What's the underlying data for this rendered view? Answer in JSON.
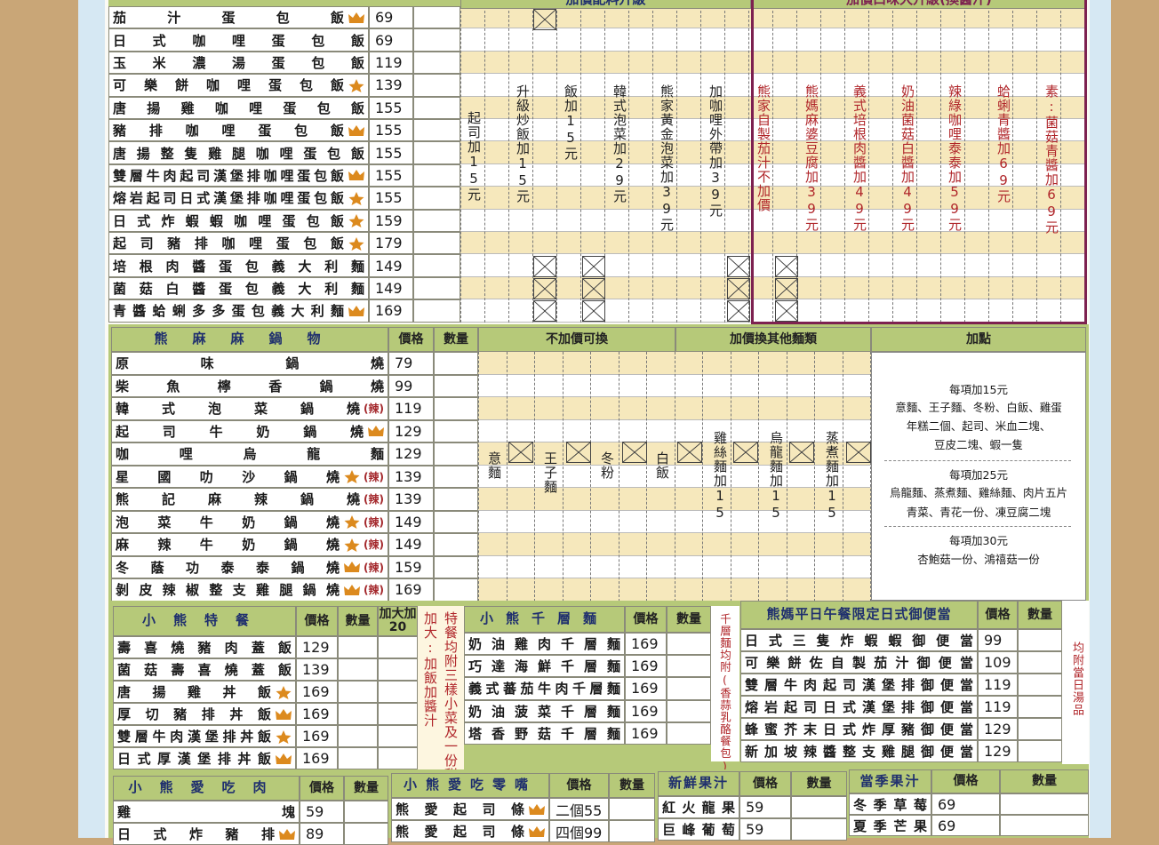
{
  "top_headers": {
    "toppings": "加價配料升級",
    "sauces": "加價口味大升級(換醬汁)"
  },
  "rice": {
    "rows": [
      {
        "name": "茄汁蛋包飯",
        "price": 69,
        "icon": "crown"
      },
      {
        "name": "日式咖哩蛋包飯",
        "price": 69
      },
      {
        "name": "玉米濃湯蛋包飯",
        "price": 119
      },
      {
        "name": "可樂餅咖哩蛋包飯",
        "price": 139,
        "icon": "star"
      },
      {
        "name": "唐揚雞咖哩蛋包飯",
        "price": 155
      },
      {
        "name": "豬排咖哩蛋包飯",
        "price": 155,
        "icon": "crown"
      },
      {
        "name": "唐揚整隻雞腿咖哩蛋包飯",
        "price": 155
      },
      {
        "name": "雙層牛肉起司漢堡排咖哩蛋包飯",
        "price": 155,
        "icon": "crown"
      },
      {
        "name": "熔岩起司日式漢堡排咖哩蛋包飯",
        "price": 155,
        "icon": "star"
      },
      {
        "name": "日式炸蝦蝦咖哩蛋包飯",
        "price": 159,
        "icon": "star"
      },
      {
        "name": "起司豬排咖哩蛋包飯",
        "price": 179,
        "icon": "star"
      },
      {
        "name": "培根肉醬蛋包義大利麵",
        "price": 149
      },
      {
        "name": "菌菇白醬蛋包義大利麵",
        "price": 149
      },
      {
        "name": "青醬蛤蜊多多蛋包義大利麵",
        "price": 169,
        "icon": "crown"
      }
    ],
    "toppings": [
      "起司加15元",
      "升級炒飯加15元",
      "飯加15元",
      "韓式泡菜加29元",
      "熊家黃金泡菜加39元",
      "加咖哩外帶加39元"
    ],
    "sauces": [
      "熊家自製茄汁不加價",
      "熊媽麻婆豆腐加39元",
      "義式培根肉醬加49元",
      "奶油菌菇白醬加49元",
      "辣綠咖哩泰泰加59元",
      "蛤蜊青醬加69元",
      "素:菌菇青醬加69元"
    ]
  },
  "hotpot": {
    "title": "熊麻麻鍋物",
    "headers": [
      "價格",
      "數量",
      "不加價可換",
      "加價換其他麵類",
      "加點"
    ],
    "rows": [
      {
        "name": "原味鍋燒",
        "price": 79
      },
      {
        "name": "柴魚檸香鍋燒",
        "price": 99
      },
      {
        "name": "韓式泡菜鍋燒",
        "price": 119,
        "tag": "(辣)"
      },
      {
        "name": "起司牛奶鍋燒",
        "price": 129,
        "icon": "crown"
      },
      {
        "name": "咖哩烏龍麵",
        "price": 129
      },
      {
        "name": "星國叻沙鍋燒",
        "price": 139,
        "icon": "star",
        "tag": "(辣)"
      },
      {
        "name": "熊記麻辣鍋燒",
        "price": 139,
        "tag": "(辣)"
      },
      {
        "name": "泡菜牛奶鍋燒",
        "price": 149,
        "icon": "star",
        "tag": "(辣)"
      },
      {
        "name": "麻辣牛奶鍋燒",
        "price": 149,
        "icon": "star",
        "tag": "(辣)"
      },
      {
        "name": "冬蔭功泰泰鍋燒",
        "price": 159,
        "icon": "crown",
        "tag": "(辣)"
      },
      {
        "name": "剝皮辣椒整支雞腿鍋燒",
        "price": 169,
        "icon": "crown",
        "tag": "(辣)"
      }
    ],
    "swaps": [
      "意麵",
      "王子麵",
      "冬粉",
      "白飯"
    ],
    "paid_swaps": [
      "雞絲麵加15",
      "烏龍麵加15",
      "蒸煮麵加15"
    ],
    "addons": [
      "每項加15元",
      "意麵、王子麵、冬粉、白飯、雞蛋",
      "年糕二個、起司、米血二塊、",
      "豆皮二塊、蝦一隻",
      "每項加25元",
      "烏龍麵、蒸煮麵、雞絲麵、肉片五片",
      "青菜、青花一份、凍豆腐二塊",
      "每項加30元",
      "杏鮑菇一份、鴻禧菇一份"
    ]
  },
  "special": {
    "title": "小熊特餐",
    "headers": [
      "價格",
      "數量",
      "加大加20"
    ],
    "rows": [
      {
        "name": "壽喜燒豬肉蓋飯",
        "price": 129
      },
      {
        "name": "菌菇壽喜燒蓋飯",
        "price": 139
      },
      {
        "name": "唐揚雞丼飯",
        "price": 169,
        "icon": "star"
      },
      {
        "name": "厚切豬排丼飯",
        "price": 169,
        "icon": "crown"
      },
      {
        "name": "雙層牛肉漢堡排丼飯",
        "price": 169,
        "icon": "star"
      },
      {
        "name": "日式厚漢堡排丼飯",
        "price": 169,
        "icon": "crown"
      }
    ],
    "notes": [
      "特餐均附三樣小菜及一份甜點",
      "加大:加飯加醬汁"
    ]
  },
  "lasagna": {
    "title": "小熊千層麵",
    "headers": [
      "價格",
      "數量"
    ],
    "rows": [
      {
        "name": "奶油雞肉千層麵",
        "price": 169
      },
      {
        "name": "巧達海鮮千層麵",
        "price": 169
      },
      {
        "name": "義式蕃茄牛肉千層麵",
        "price": 169
      },
      {
        "name": "奶油菠菜千層麵",
        "price": 169
      },
      {
        "name": "塔香野菇千層麵",
        "price": 169
      }
    ],
    "note": "千層麵均附(香蒜乳酪餐包)"
  },
  "bento": {
    "title": "熊媽平日午餐限定日式御便當",
    "headers": [
      "價格",
      "數量"
    ],
    "rows": [
      {
        "name": "日式三隻炸蝦蝦御便當",
        "price": 99
      },
      {
        "name": "可樂餅佐自製茄汁御便當",
        "price": 109
      },
      {
        "name": "雙層牛肉起司漢堡排御便當",
        "price": 119
      },
      {
        "name": "熔岩起司日式漢堡排御便當",
        "price": 119
      },
      {
        "name": "蜂蜜芥末日式炸厚豬御便當",
        "price": 129
      },
      {
        "name": "新加坡辣醬整支雞腿御便當",
        "price": 129
      }
    ],
    "note": "均附當日湯品"
  },
  "meat": {
    "title": "小熊愛吃肉",
    "headers": [
      "價格",
      "數量"
    ],
    "rows": [
      {
        "name": "雞塊",
        "price": 59
      },
      {
        "name": "日式炸豬排",
        "price": 89,
        "icon": "crown"
      }
    ]
  },
  "snacks": {
    "title": "小熊愛吃零嘴",
    "headers": [
      "價格",
      "數量"
    ],
    "rows": [
      {
        "name": "熊愛起司條",
        "price": "二個55",
        "icon": "crown"
      },
      {
        "name": "熊愛起司條",
        "price": "四個99",
        "icon": "crown"
      }
    ]
  },
  "fresh_juice": {
    "title": "新鮮果汁",
    "headers": [
      "價格",
      "數量"
    ],
    "rows": [
      {
        "name": "紅火龍果",
        "price": 59
      },
      {
        "name": "巨峰葡萄",
        "price": 59
      }
    ]
  },
  "season_juice": {
    "title": "當季果汁",
    "headers": [
      "價格",
      "數量"
    ],
    "rows": [
      {
        "name": "冬季草莓",
        "price": 69
      },
      {
        "name": "夏季芒果",
        "price": 69
      }
    ]
  }
}
